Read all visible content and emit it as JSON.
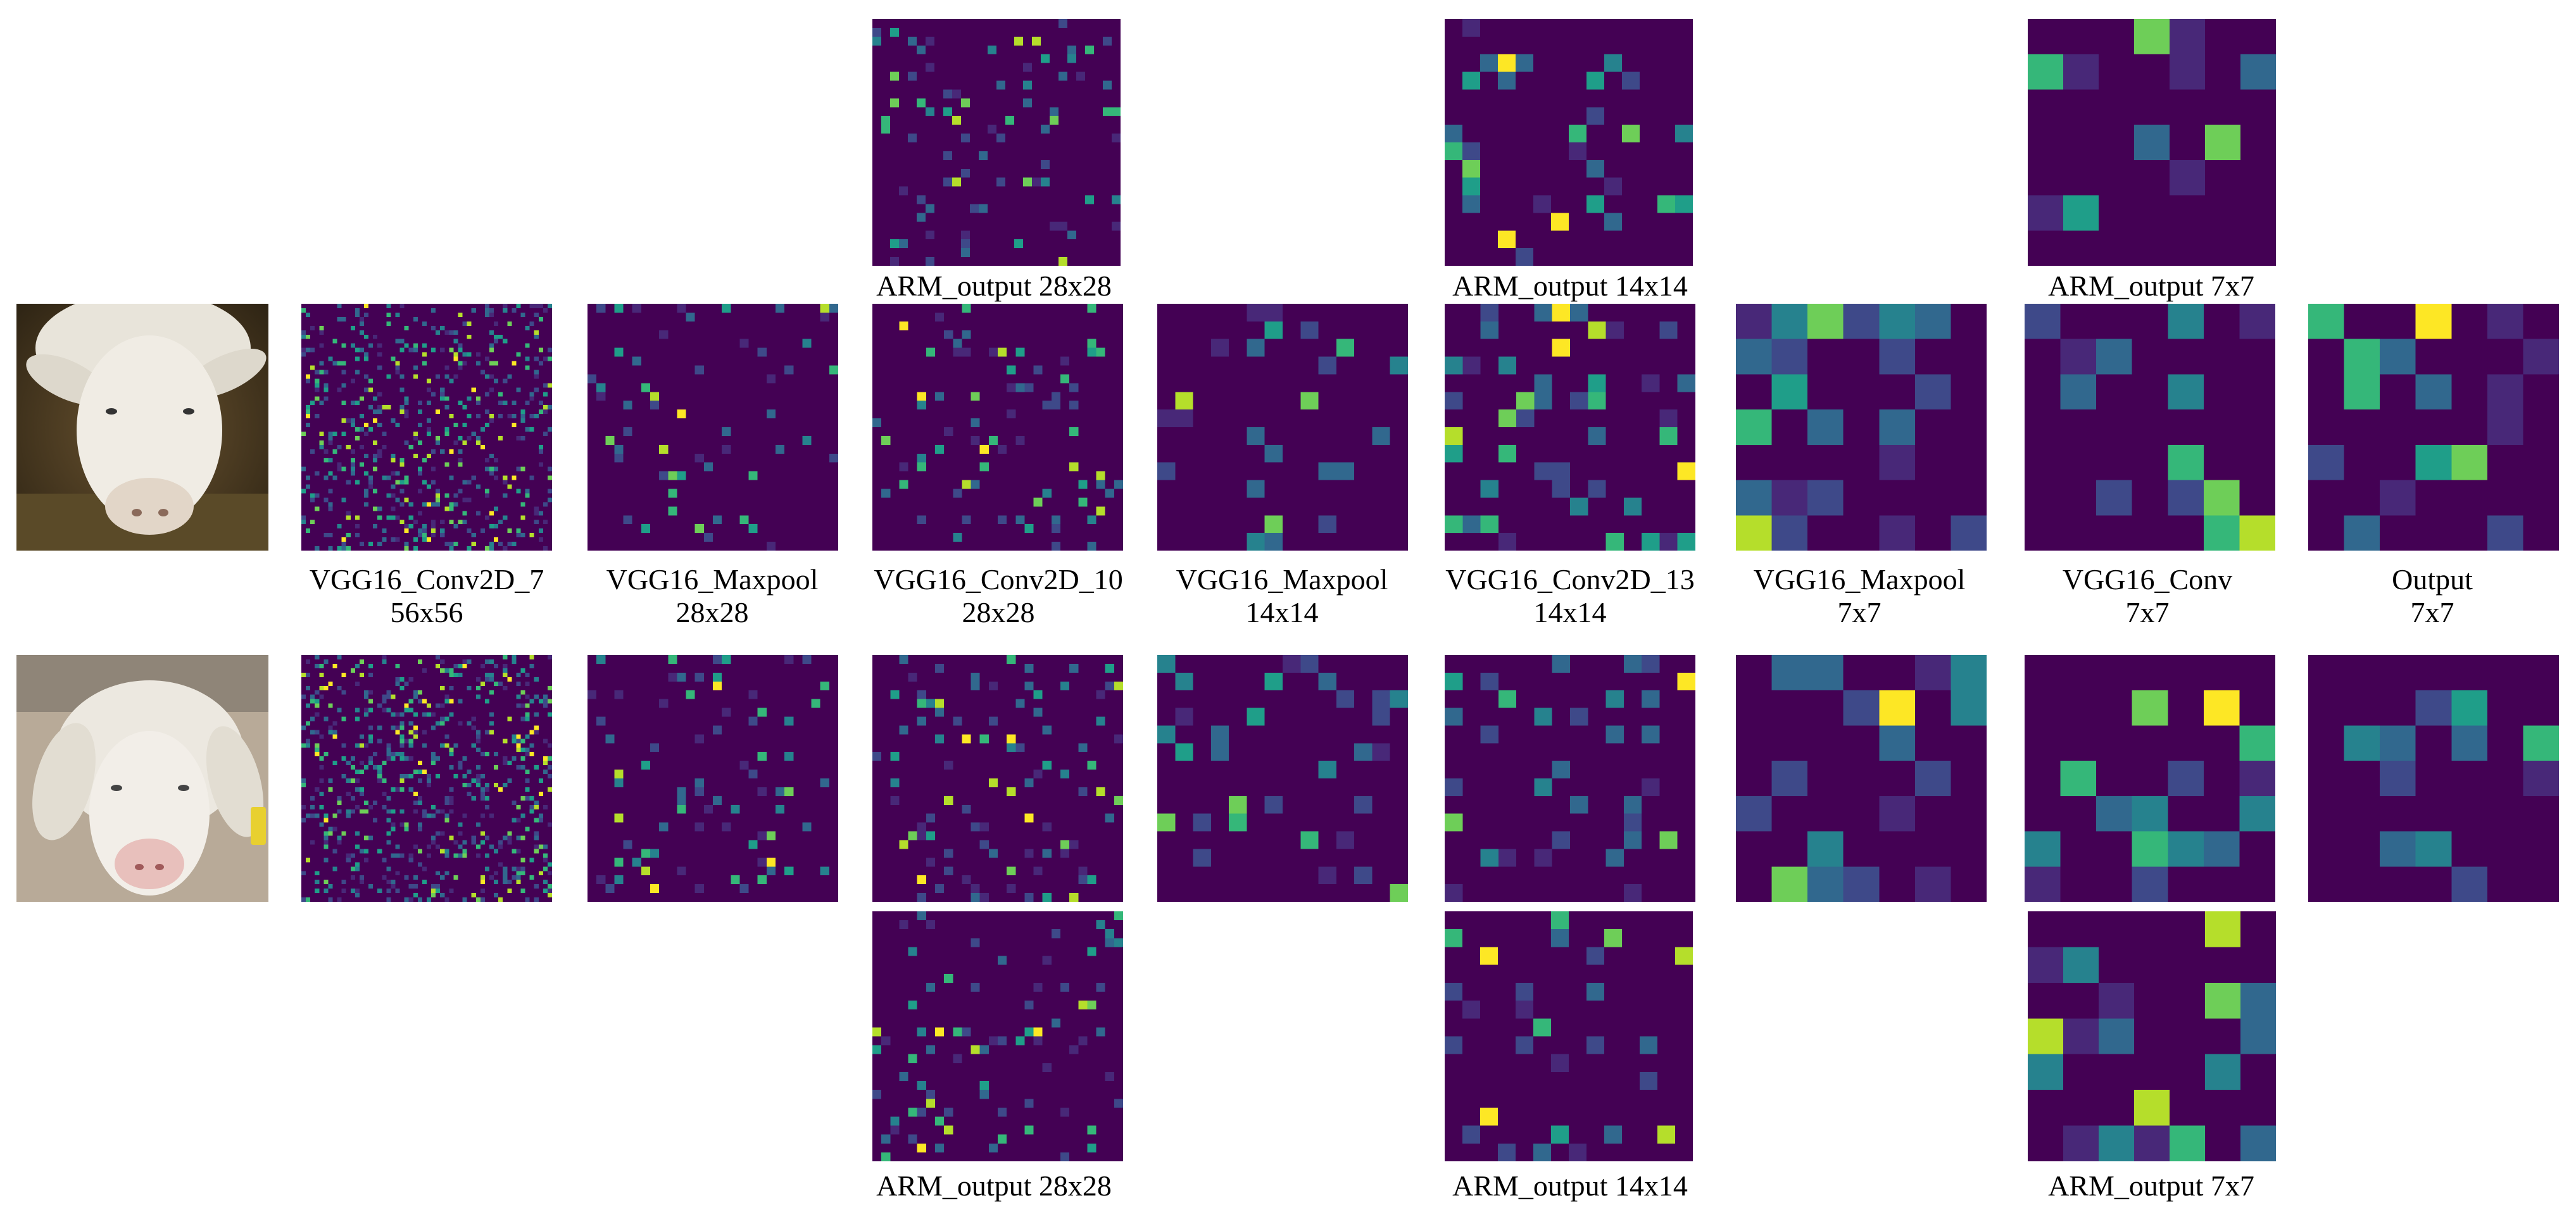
{
  "labels": {
    "arm_28": "ARM_output 28x28",
    "arm_14": "ARM_output 14x14",
    "arm_7": "ARM_output 7x7",
    "conv7": [
      "VGG16_Conv2D_7",
      "56x56"
    ],
    "maxpool28": [
      "VGG16_Maxpool",
      "28x28"
    ],
    "conv10": [
      "VGG16_Conv2D_10",
      "28x28"
    ],
    "maxpool14": [
      "VGG16_Maxpool",
      "14x14"
    ],
    "conv13": [
      "VGG16_Conv2D_13",
      "14x14"
    ],
    "maxpool7": [
      "VGG16_Maxpool",
      "7x7"
    ],
    "conv": [
      "VGG16_Conv",
      "7x7"
    ],
    "output": [
      "Output",
      "7x7"
    ]
  },
  "colors": {
    "background": "#440154",
    "colormap": [
      "#440154",
      "#482878",
      "#3e4989",
      "#31688e",
      "#26828e",
      "#1f9e89",
      "#35b779",
      "#6ece58",
      "#b5de2b",
      "#fde725"
    ]
  },
  "photos": {
    "sheep_top": "brown-background-sheep-photo",
    "sheep_bottom": "grey-background-sheep-photo"
  }
}
